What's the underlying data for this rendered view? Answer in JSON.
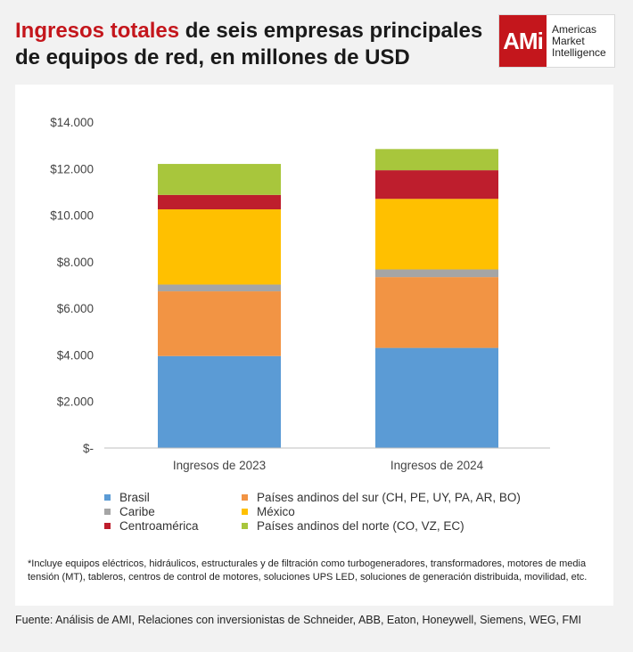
{
  "header": {
    "title_accent": "Ingresos totales",
    "title_rest": " de seis empresas principales de equipos de red, en millones de USD"
  },
  "logo": {
    "mark": "AMi",
    "line1": "Americas",
    "line2": "Market",
    "line3": "Intelligence"
  },
  "chart_data": {
    "type": "bar",
    "stacked": true,
    "categories": [
      "Ingresos de 2023",
      "Ingresos de 2024"
    ],
    "series": [
      {
        "name": "Brasil",
        "color": "#5b9bd5",
        "values": [
          3950,
          4300
        ]
      },
      {
        "name": "Países andinos del sur (CH, PE, UY, PA, AR, BO)",
        "color": "#f29444",
        "values": [
          2780,
          3040
        ]
      },
      {
        "name": "Caribe",
        "color": "#a5a5a5",
        "values": [
          290,
          330
        ]
      },
      {
        "name": "México",
        "color": "#ffc000",
        "values": [
          3230,
          3030
        ]
      },
      {
        "name": "Centroamérica",
        "color": "#be1e2d",
        "values": [
          620,
          1230
        ]
      },
      {
        "name": "Países andinos del norte (CO, VZ, EC)",
        "color": "#a8c63c",
        "values": [
          1330,
          910
        ]
      }
    ],
    "ylim": [
      0,
      14000
    ],
    "yticks": [
      0,
      2000,
      4000,
      6000,
      8000,
      10000,
      12000,
      14000
    ],
    "ytick_labels": [
      "$-",
      "$2.000",
      "$4.000",
      "$6.000",
      "$8.000",
      "$10.000",
      "$12.000",
      "$14.000"
    ],
    "grid": false,
    "legend_position": "bottom"
  },
  "footnote": "*Incluye equipos eléctricos, hidráulicos, estructurales y de filtración como turbogeneradores, transformadores, motores de media tensión (MT), tableros, centros de control de motores, soluciones UPS LED, soluciones de generación distribuida, movilidad, etc.",
  "source": "Fuente: Análisis de AMI, Relaciones con inversionistas de Schneider, ABB, Eaton, Honeywell, Siemens, WEG, FMI"
}
